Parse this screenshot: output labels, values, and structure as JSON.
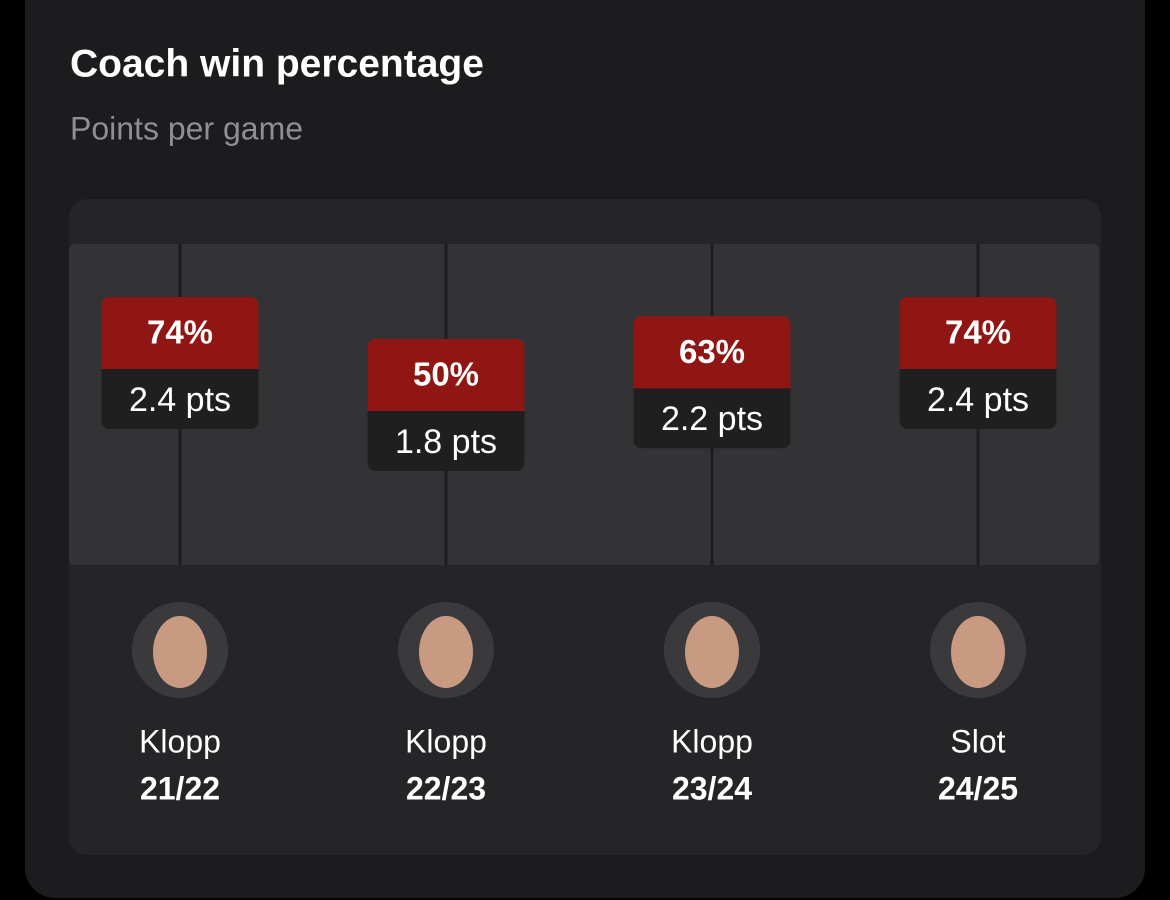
{
  "chart_data": {
    "type": "badge",
    "title": "Coach win percentage",
    "subtitle": "Points per game",
    "coaches": [
      "Klopp",
      "Klopp",
      "Klopp",
      "Slot"
    ],
    "categories": [
      "21/22",
      "22/23",
      "23/24",
      "24/25"
    ],
    "win_percentages": [
      74,
      50,
      63,
      74
    ],
    "win_percentage_labels": [
      "74%",
      "50%",
      "63%",
      "74%"
    ],
    "values": [
      2.4,
      1.8,
      2.2,
      2.4
    ],
    "value_labels": [
      "2.4 pts",
      "1.8 pts",
      "2.2 pts",
      "2.4 pts"
    ],
    "color": "#8f1613"
  }
}
